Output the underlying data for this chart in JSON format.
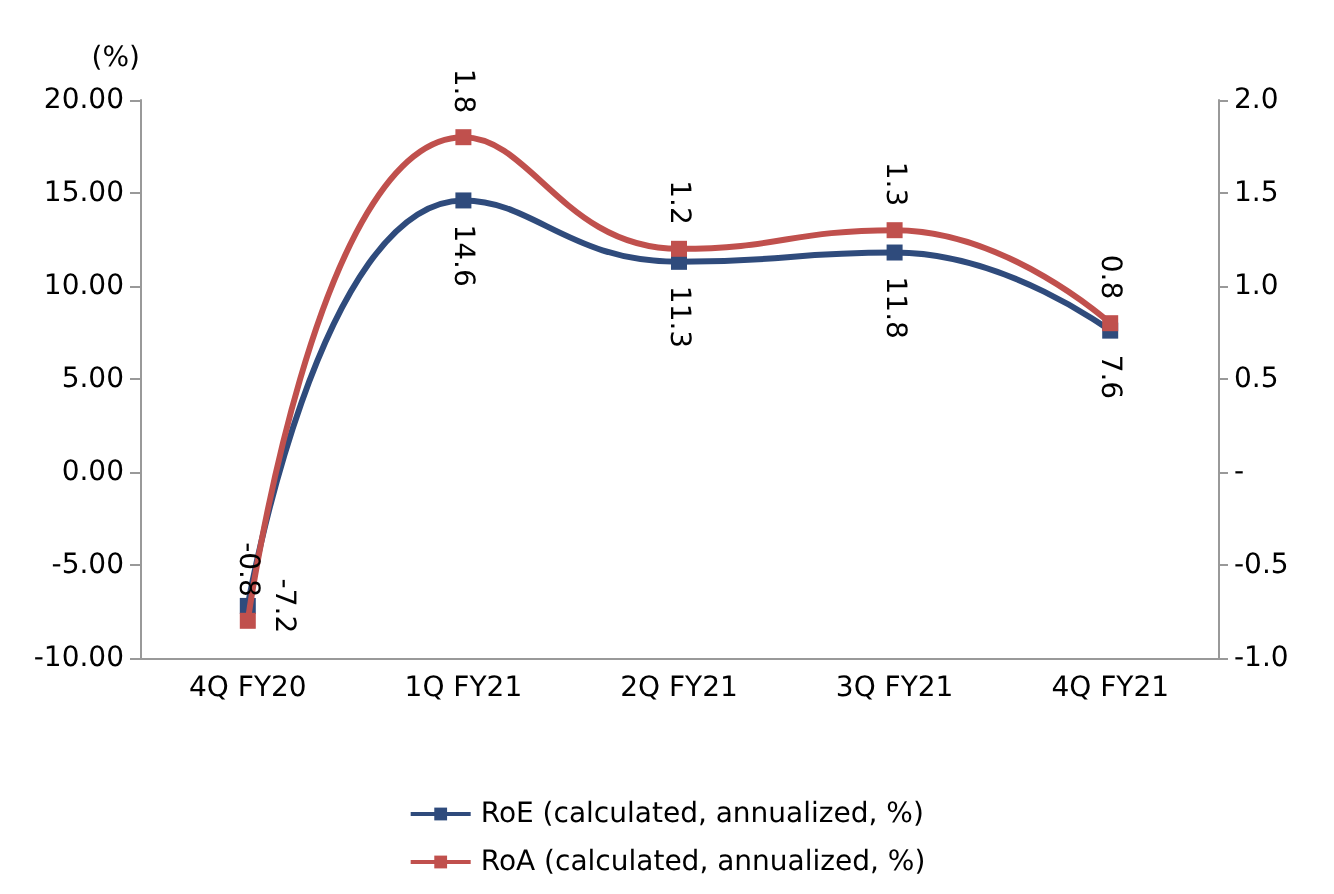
{
  "chart_data": {
    "type": "line",
    "ylabel": "(%)",
    "categories": [
      "4Q FY20",
      "1Q FY21",
      "2Q FY21",
      "3Q FY21",
      "4Q FY21"
    ],
    "series": [
      {
        "name": "RoE (calculated, annualized, %)",
        "color": "#2f4b7c",
        "values": [
          -7.2,
          14.6,
          11.3,
          11.8,
          7.6
        ]
      },
      {
        "name": "RoA (calculated, annualized, %)",
        "color": "#c0504d",
        "values": [
          -0.8,
          1.8,
          1.2,
          1.3,
          0.8
        ],
        "axis": "y2"
      }
    ],
    "ylim": [
      -10,
      20
    ],
    "yticks": [
      {
        "value": -10,
        "label": "-10.00"
      },
      {
        "value": -5,
        "label": "-5.00"
      },
      {
        "value": 0,
        "label": "0.00"
      },
      {
        "value": 5,
        "label": "5.00"
      },
      {
        "value": 10,
        "label": "10.00"
      },
      {
        "value": 15,
        "label": "15.00"
      },
      {
        "value": 20,
        "label": "20.00"
      }
    ],
    "y2lim": [
      -1,
      2
    ],
    "y2ticks": [
      {
        "value": -1,
        "label": "-1.0"
      },
      {
        "value": -0.5,
        "label": "-0.5"
      },
      {
        "value": 0,
        "label": "-"
      },
      {
        "value": 0.5,
        "label": "0.5"
      },
      {
        "value": 1,
        "label": "1.0"
      },
      {
        "value": 1.5,
        "label": "1.5"
      },
      {
        "value": 2,
        "label": "2.0"
      }
    ],
    "data_labels": true,
    "marker": "square",
    "line_style": "solid",
    "grid": false,
    "legend": "bottom"
  }
}
